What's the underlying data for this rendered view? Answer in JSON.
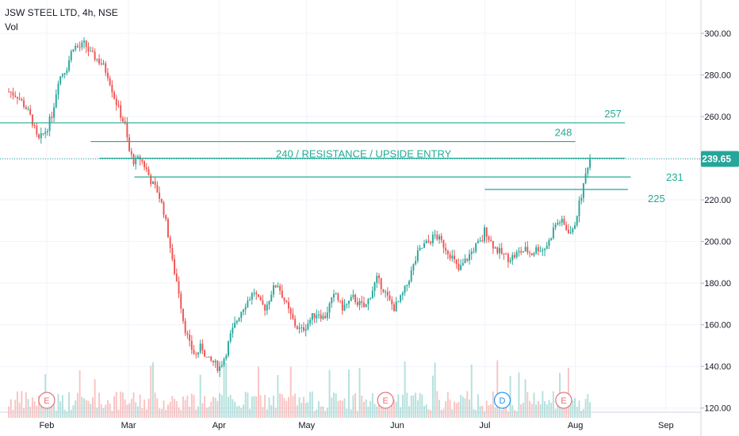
{
  "header": {
    "title": "JSW STEEL LTD, 4h, NSE",
    "volume_label": "Vol"
  },
  "colors": {
    "up": "#26a69a",
    "down": "#ef5350",
    "level": "#22ab94",
    "grid": "#f0f3fa",
    "axis_text": "#131722",
    "price_badge": "#26a69a",
    "earnings_marker": "#e5737b",
    "dividend_marker": "#2196f3"
  },
  "chart_data": {
    "type": "candlestick",
    "title": "JSW STEEL LTD, 4h, NSE",
    "timeframe": "4h",
    "x_labels": [
      "Feb",
      "Mar",
      "Apr",
      "May",
      "Jun",
      "Jul",
      "Aug",
      "Sep"
    ],
    "y_ticks": [
      "300.00",
      "280.00",
      "260.00",
      "240.00",
      "220.00",
      "200.00",
      "180.00",
      "160.00",
      "140.00",
      "120.00"
    ],
    "ylim": [
      118,
      316
    ],
    "last_price": "239.65",
    "price_series": [
      [
        "2021-01-19",
        272
      ],
      [
        "2021-01-22",
        270
      ],
      [
        "2021-01-25",
        264
      ],
      [
        "2021-01-27",
        258
      ],
      [
        "2021-01-29",
        248
      ],
      [
        "2021-02-01",
        254
      ],
      [
        "2021-02-03",
        262
      ],
      [
        "2021-02-05",
        278
      ],
      [
        "2021-02-08",
        284
      ],
      [
        "2021-02-10",
        294
      ],
      [
        "2021-02-12",
        293
      ],
      [
        "2021-02-14",
        295
      ],
      [
        "2021-02-16",
        290
      ],
      [
        "2021-02-18",
        288
      ],
      [
        "2021-02-20",
        285
      ],
      [
        "2021-02-22",
        280
      ],
      [
        "2021-02-24",
        270
      ],
      [
        "2021-02-26",
        262
      ],
      [
        "2021-02-28",
        255
      ],
      [
        "2021-03-01",
        244
      ],
      [
        "2021-03-03",
        238
      ],
      [
        "2021-03-05",
        240
      ],
      [
        "2021-03-07",
        235
      ],
      [
        "2021-03-09",
        228
      ],
      [
        "2021-03-11",
        224
      ],
      [
        "2021-03-13",
        215
      ],
      [
        "2021-03-15",
        200
      ],
      [
        "2021-03-16",
        190
      ],
      [
        "2021-03-18",
        178
      ],
      [
        "2021-03-20",
        160
      ],
      [
        "2021-03-22",
        150
      ],
      [
        "2021-03-24",
        145
      ],
      [
        "2021-03-26",
        150
      ],
      [
        "2021-03-28",
        143
      ],
      [
        "2021-03-30",
        142
      ],
      [
        "2021-04-01",
        139
      ],
      [
        "2021-04-03",
        145
      ],
      [
        "2021-04-05",
        155
      ],
      [
        "2021-04-07",
        162
      ],
      [
        "2021-04-09",
        168
      ],
      [
        "2021-04-11",
        172
      ],
      [
        "2021-04-13",
        176
      ],
      [
        "2021-04-15",
        170
      ],
      [
        "2021-04-17",
        168
      ],
      [
        "2021-04-19",
        176
      ],
      [
        "2021-04-21",
        180
      ],
      [
        "2021-04-23",
        173
      ],
      [
        "2021-04-25",
        166
      ],
      [
        "2021-04-27",
        160
      ],
      [
        "2021-04-29",
        157
      ],
      [
        "2021-05-01",
        160
      ],
      [
        "2021-05-03",
        164
      ],
      [
        "2021-05-05",
        166
      ],
      [
        "2021-05-07",
        163
      ],
      [
        "2021-05-09",
        170
      ],
      [
        "2021-05-11",
        175
      ],
      [
        "2021-05-13",
        168
      ],
      [
        "2021-05-15",
        170
      ],
      [
        "2021-05-17",
        173
      ],
      [
        "2021-05-19",
        170
      ],
      [
        "2021-05-21",
        168
      ],
      [
        "2021-05-23",
        175
      ],
      [
        "2021-05-25",
        182
      ],
      [
        "2021-05-27",
        178
      ],
      [
        "2021-05-29",
        172
      ],
      [
        "2021-05-31",
        168
      ],
      [
        "2021-06-02",
        172
      ],
      [
        "2021-06-04",
        178
      ],
      [
        "2021-06-06",
        186
      ],
      [
        "2021-06-08",
        194
      ],
      [
        "2021-06-10",
        198
      ],
      [
        "2021-06-12",
        200
      ],
      [
        "2021-06-14",
        203
      ],
      [
        "2021-06-16",
        200
      ],
      [
        "2021-06-18",
        196
      ],
      [
        "2021-06-20",
        192
      ],
      [
        "2021-06-22",
        186
      ],
      [
        "2021-06-24",
        190
      ],
      [
        "2021-06-26",
        194
      ],
      [
        "2021-06-28",
        198
      ],
      [
        "2021-06-30",
        200
      ],
      [
        "2021-07-01",
        206
      ],
      [
        "2021-07-03",
        200
      ],
      [
        "2021-07-05",
        196
      ],
      [
        "2021-07-07",
        194
      ],
      [
        "2021-07-09",
        192
      ],
      [
        "2021-07-11",
        193
      ],
      [
        "2021-07-13",
        195
      ],
      [
        "2021-07-15",
        196
      ],
      [
        "2021-07-17",
        194
      ],
      [
        "2021-07-19",
        197
      ],
      [
        "2021-07-21",
        196
      ],
      [
        "2021-07-23",
        200
      ],
      [
        "2021-07-25",
        208
      ],
      [
        "2021-07-27",
        210
      ],
      [
        "2021-07-29",
        206
      ],
      [
        "2021-07-31",
        204
      ],
      [
        "2021-08-01",
        210
      ],
      [
        "2021-08-02",
        216
      ],
      [
        "2021-08-03",
        222
      ],
      [
        "2021-08-04",
        228
      ],
      [
        "2021-08-05",
        236
      ],
      [
        "2021-08-06",
        239.65
      ]
    ],
    "levels": [
      {
        "value": 257,
        "label": "257",
        "start": "2021-01-16",
        "end": "2021-08-18"
      },
      {
        "value": 248,
        "label": "248",
        "start": "2021-02-16",
        "end": "2021-08-01"
      },
      {
        "value": 240,
        "label": "240 / RESISTANCE / UPSIDE ENTRY",
        "start": "2021-02-19",
        "end": "2021-08-18"
      },
      {
        "value": 231,
        "label": "231",
        "start": "2021-03-03",
        "end": "2021-08-20"
      },
      {
        "value": 225,
        "label": "225",
        "start": "2021-07-01",
        "end": "2021-08-19"
      }
    ],
    "events": [
      {
        "type": "earnings",
        "label": "E",
        "date": "2021-02-01"
      },
      {
        "type": "earnings",
        "label": "E",
        "date": "2021-05-28"
      },
      {
        "type": "dividend",
        "label": "D",
        "date": "2021-07-07"
      },
      {
        "type": "earnings",
        "label": "E",
        "date": "2021-07-28"
      }
    ]
  }
}
